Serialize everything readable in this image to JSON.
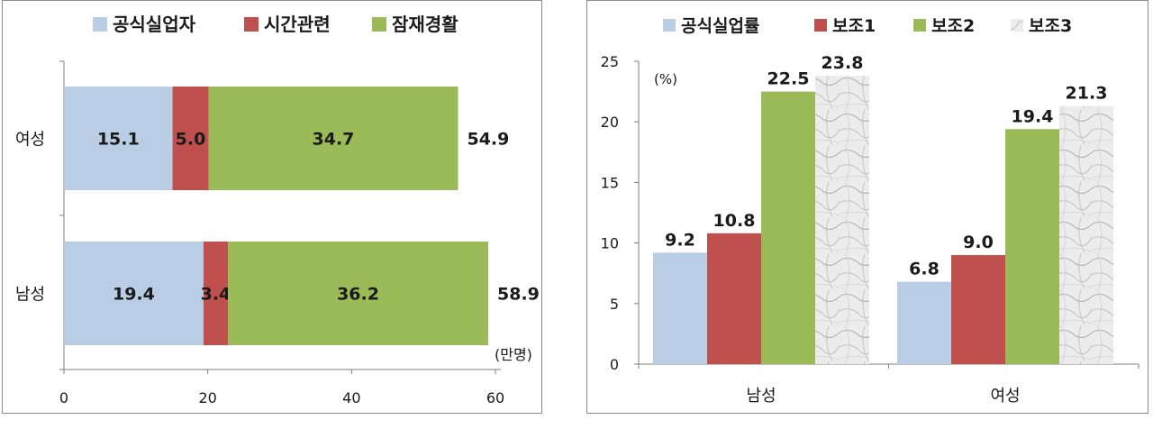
{
  "chart_data": [
    {
      "type": "bar",
      "orientation": "horizontal",
      "stacked": true,
      "categories": [
        "여성",
        "남성"
      ],
      "series": [
        {
          "name": "공식실업자",
          "values": [
            15.1,
            19.4
          ],
          "color": "#b9cde5"
        },
        {
          "name": "시간관련",
          "values": [
            5.0,
            3.4
          ],
          "color": "#c0504d"
        },
        {
          "name": "잠재경활",
          "values": [
            34.7,
            36.2
          ],
          "color": "#9bbb59"
        }
      ],
      "totals": [
        "54.9",
        "58.9"
      ],
      "labels": [
        [
          "15.1",
          "5.0",
          "34.7"
        ],
        [
          "19.4",
          "3.4",
          "36.2"
        ]
      ],
      "unit_label": "(만명)",
      "xlim": [
        0,
        60
      ],
      "x_ticks": [
        "0",
        "20",
        "40",
        "60"
      ],
      "legend_position": "top",
      "grid": false
    },
    {
      "type": "bar",
      "categories": [
        "남성",
        "여성"
      ],
      "series": [
        {
          "name": "공식실업률",
          "values": [
            9.2,
            6.8
          ],
          "color": "#b9cde5"
        },
        {
          "name": "보조1",
          "values": [
            10.8,
            9.0
          ],
          "color": "#c0504d"
        },
        {
          "name": "보조2",
          "values": [
            22.5,
            19.4
          ],
          "color": "#9bbb59"
        },
        {
          "name": "보조3",
          "values": [
            23.8,
            21.3
          ],
          "color": "#d9d9d9",
          "pattern": "marble"
        }
      ],
      "labels": [
        [
          "9.2",
          "10.8",
          "22.5",
          "23.8"
        ],
        [
          "6.8",
          "9.0",
          "19.4",
          "21.3"
        ]
      ],
      "unit_label": "(%)",
      "ylim": [
        0,
        25
      ],
      "y_ticks": [
        "0",
        "5",
        "10",
        "15",
        "20",
        "25"
      ],
      "legend_position": "top",
      "grid": false
    }
  ]
}
